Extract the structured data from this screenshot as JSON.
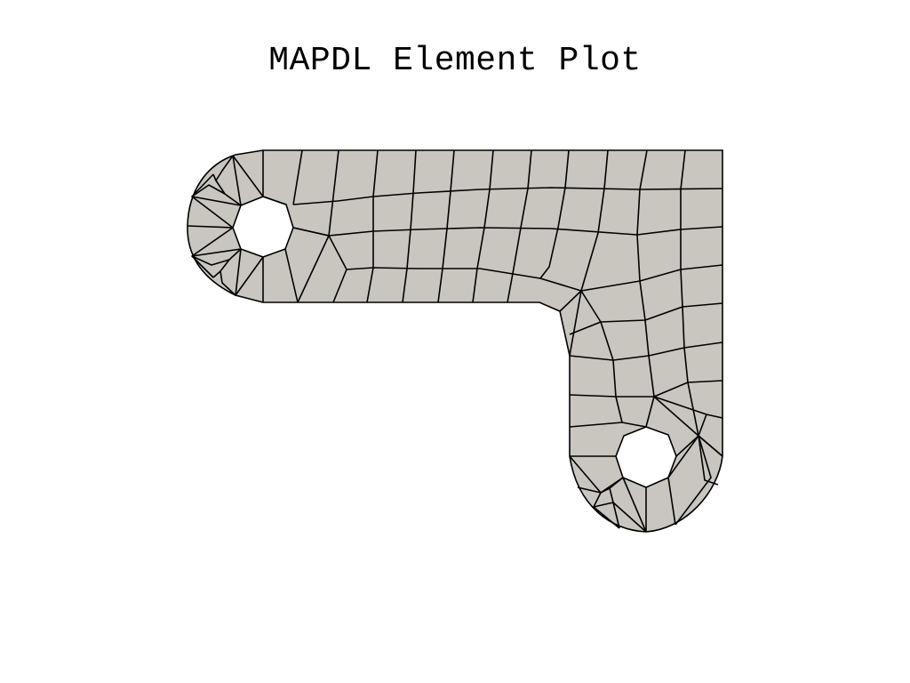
{
  "title": "MAPDL Element Plot",
  "colors": {
    "background": "#ffffff",
    "element_fill": "#c8c6bf",
    "edge": "#000000"
  }
}
